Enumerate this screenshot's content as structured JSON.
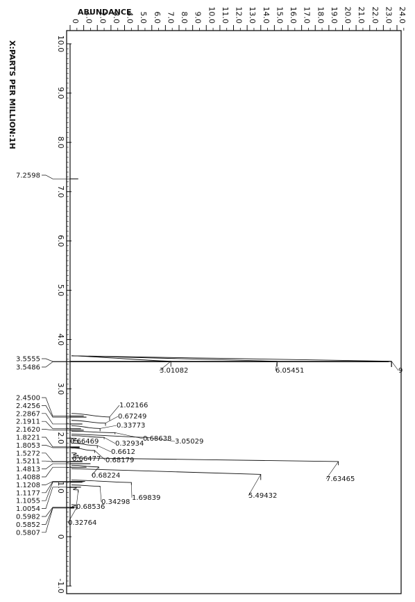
{
  "chart_data": {
    "type": "line",
    "title": "",
    "xlabel": "X:PARTS PER MILLION:1H",
    "ylabel": "ABUNDANCE",
    "x_reversed": true,
    "xlim": [
      10.0,
      -1.0
    ],
    "ylim": [
      0,
      24.0
    ],
    "x_ticks": [
      "10.0",
      "9.0",
      "8.0",
      "7.0",
      "6.0",
      "5.0",
      "4.0",
      "3.0",
      "2.0",
      "1.0",
      "0",
      "-1.0"
    ],
    "y_ticks": [
      "0",
      "1.0",
      "2.0",
      "3.0",
      "4.0",
      "5.0",
      "6.0",
      "7.0",
      "8.0",
      "9.0",
      "10.0",
      "11.0",
      "12.0",
      "13.0",
      "14.0",
      "15.0",
      "16.0",
      "17.0",
      "18.0",
      "19.0",
      "20.0",
      "21.0",
      "22.0",
      "23.0",
      "24.0"
    ],
    "peaks": [
      {
        "label": "7.2598",
        "ppm": 7.2598,
        "height": 0.6
      },
      {
        "label": "3.5555",
        "ppm": 3.5555,
        "height": 23.4
      },
      {
        "label": "3.5486",
        "ppm": 3.5486,
        "height": 23.4
      },
      {
        "label": "2.4500",
        "ppm": 2.45,
        "height": 1.0
      },
      {
        "label": "2.4256",
        "ppm": 2.4256,
        "height": 1.2
      },
      {
        "label": "2.2867",
        "ppm": 2.2867,
        "height": 0.9
      },
      {
        "label": "2.1911",
        "ppm": 2.1911,
        "height": 0.8
      },
      {
        "label": "2.1620",
        "ppm": 2.162,
        "height": 1.0
      },
      {
        "label": "1.8221",
        "ppm": 1.8221,
        "height": 0.7
      },
      {
        "label": "1.8053",
        "ppm": 1.8053,
        "height": 0.7
      },
      {
        "label": "1.5272",
        "ppm": 1.5272,
        "height": 0.9
      },
      {
        "label": "1.5211",
        "ppm": 1.5211,
        "height": 0.9
      },
      {
        "label": "1.4813",
        "ppm": 1.4813,
        "height": 1.5
      },
      {
        "label": "1.4088",
        "ppm": 1.4088,
        "height": 1.2
      },
      {
        "label": "1.1208",
        "ppm": 1.1208,
        "height": 1.1
      },
      {
        "label": "1.1177",
        "ppm": 1.1177,
        "height": 1.0
      },
      {
        "label": "1.1055",
        "ppm": 1.1055,
        "height": 0.9
      },
      {
        "label": "1.0054",
        "ppm": 1.0054,
        "height": 0.8
      },
      {
        "label": "0.5982",
        "ppm": 0.5982,
        "height": 0.3
      },
      {
        "label": "0.5852",
        "ppm": 0.5852,
        "height": 0.3
      },
      {
        "label": "0.5807",
        "ppm": 0.5807,
        "height": 0.3
      }
    ],
    "integrals": [
      {
        "label": "3.01082",
        "ppm_from": 3.67,
        "ppm_to": 3.45,
        "level": 7.4,
        "step": "a"
      },
      {
        "label": "6.05451",
        "ppm_from": 3.67,
        "ppm_to": 3.45,
        "level": 15.2,
        "step": "b"
      },
      {
        "label": "9",
        "ppm_from": 3.67,
        "ppm_to": 3.45,
        "level": 23.6,
        "step": "c"
      },
      {
        "label": "1.02166",
        "ppm_from": 2.5,
        "ppm_to": 2.36,
        "level": 2.9
      },
      {
        "label": "0.67249",
        "ppm_from": 2.36,
        "ppm_to": 2.25,
        "level": 2.6
      },
      {
        "label": "0.33773",
        "ppm_from": 2.25,
        "ppm_to": 2.14,
        "level": 2.2
      },
      {
        "label": "0.68638",
        "ppm_from": 2.14,
        "ppm_to": 2.08,
        "level": 3.3
      },
      {
        "label": "3.05029",
        "ppm_from": 2.08,
        "ppm_to": 1.95,
        "level": 5.7
      },
      {
        "label": "0.32934",
        "ppm_from": 2.05,
        "ppm_to": 1.98,
        "level": 2.5
      },
      {
        "label": "0.66469",
        "ppm_from": 2.0,
        "ppm_to": 1.9,
        "level": 0.6
      },
      {
        "label": "0.6612",
        "ppm_from": 1.9,
        "ppm_to": 1.8,
        "level": 2.0
      },
      {
        "label": "0.68179",
        "ppm_from": 1.8,
        "ppm_to": 1.7,
        "level": 1.8
      },
      {
        "label": "0.66477",
        "ppm_from": 1.7,
        "ppm_to": 1.6,
        "level": 0.6
      },
      {
        "label": "7.63465",
        "ppm_from": 1.6,
        "ppm_to": 1.45,
        "level": 19.7
      },
      {
        "label": "0.68224",
        "ppm_from": 1.45,
        "ppm_to": 1.38,
        "level": 2.1
      },
      {
        "label": "5.49432",
        "ppm_from": 1.38,
        "ppm_to": 1.15,
        "level": 14.0
      },
      {
        "label": "1.69839",
        "ppm_from": 1.15,
        "ppm_to": 1.05,
        "level": 4.5
      },
      {
        "label": "0.34298",
        "ppm_from": 1.05,
        "ppm_to": 1.0,
        "level": 2.2
      },
      {
        "label": "0.68536",
        "ppm_from": 1.0,
        "ppm_to": 0.9,
        "level": 0.6
      },
      {
        "label": "0.32764",
        "ppm_from": 0.65,
        "ppm_to": 0.55,
        "level": 0.5
      }
    ],
    "grid": false,
    "legend": "none"
  }
}
